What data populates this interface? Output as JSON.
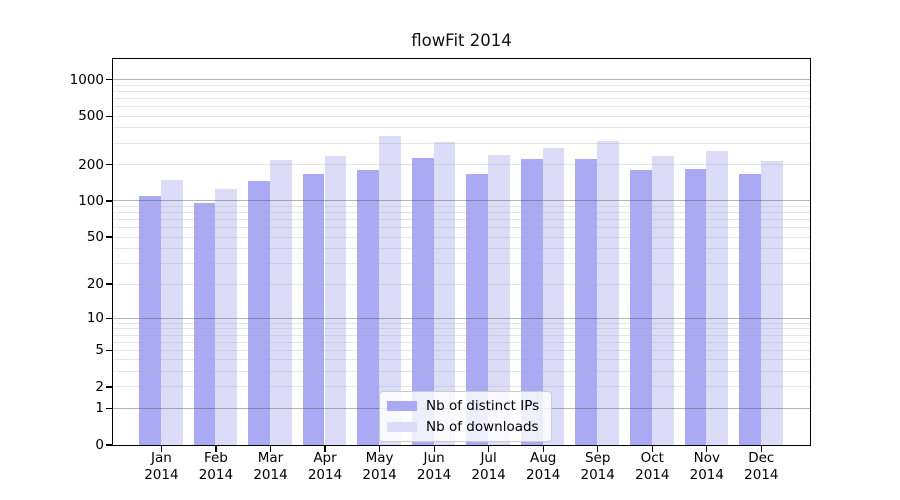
{
  "figure_title": "flowFit 2014",
  "colors": {
    "bar_ips": "#aaaaf4",
    "bar_downloads": "#dcdcf9",
    "grid_major": "rgba(70,70,70,0.40)",
    "grid_minor": "rgba(170,170,170,0.30)",
    "spine": "#000000",
    "text": "#000000",
    "legend_border": "#cccccc",
    "legend_background": "rgba(255,255,255,0.8)"
  },
  "legend": {
    "position": "lower-center-left",
    "items": [
      "Nb of distinct IPs",
      "Nb of downloads"
    ]
  },
  "chart_data": {
    "type": "bar",
    "title": "flowFit 2014",
    "categories": [
      "Jan 2014",
      "Feb 2014",
      "Mar 2014",
      "Apr 2014",
      "May 2014",
      "Jun 2014",
      "Jul 2014",
      "Aug 2014",
      "Sep 2014",
      "Oct 2014",
      "Nov 2014",
      "Dec 2014"
    ],
    "series": [
      {
        "name": "Nb of distinct IPs",
        "color": "#aaaaf4",
        "values": [
          108,
          96,
          144,
          164,
          178,
          225,
          166,
          220,
          220,
          178,
          182,
          167
        ]
      },
      {
        "name": "Nb of downloads",
        "color": "#dcdcf9",
        "values": [
          148,
          125,
          216,
          235,
          342,
          305,
          238,
          270,
          307,
          232,
          255,
          212
        ]
      }
    ],
    "xlabel": "",
    "ylabel": "",
    "yscale": "log1p",
    "yticks": [
      0,
      1,
      2,
      5,
      10,
      20,
      50,
      100,
      200,
      500,
      1000
    ],
    "ylim": [
      0,
      1475
    ],
    "grid": true,
    "legend_position": "lower center"
  }
}
